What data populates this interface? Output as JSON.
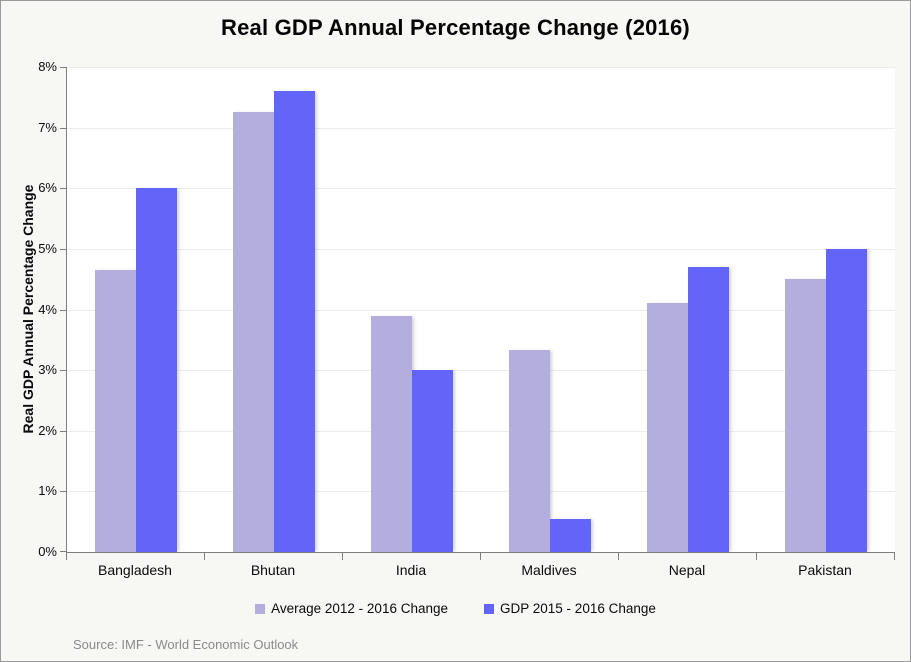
{
  "title": "Real GDP Annual Percentage Change (2016)",
  "y_axis_title": "Real GDP Annual Percentage Change",
  "source_note": "Source: IMF - World Economic Outlook",
  "legend": [
    {
      "label": "Average 2012 - 2016 Change",
      "color": "#b3aedd"
    },
    {
      "label": "GDP 2015 - 2016 Change",
      "color": "#6365f8"
    }
  ],
  "chart_data": {
    "type": "bar",
    "title": "Real GDP Annual Percentage Change (2016)",
    "xlabel": "",
    "ylabel": "Real GDP Annual Percentage Change",
    "categories": [
      "Bangladesh",
      "Bhutan",
      "India",
      "Maldives",
      "Nepal",
      "Pakistan"
    ],
    "series": [
      {
        "name": "Average 2012 - 2016 Change",
        "color": "#b3aedd",
        "values": [
          4.65,
          7.25,
          3.9,
          3.33,
          4.1,
          4.5
        ]
      },
      {
        "name": "GDP 2015 - 2016 Change",
        "color": "#6365f8",
        "values": [
          6.0,
          7.6,
          3.0,
          0.55,
          4.7,
          5.0
        ]
      }
    ],
    "ylim": [
      0,
      8
    ],
    "y_ticks": [
      "0%",
      "1%",
      "2%",
      "3%",
      "4%",
      "5%",
      "6%",
      "7%",
      "8%"
    ],
    "grid": true,
    "legend_position": "bottom",
    "plot_background": "#ffffff",
    "page_background": "#f7f7f4",
    "axis_color": "#7f7f7f",
    "grid_color": "#ececec"
  }
}
